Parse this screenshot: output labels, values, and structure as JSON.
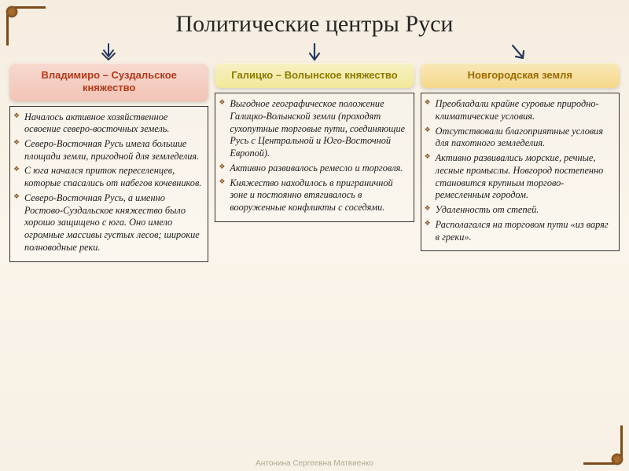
{
  "title": "Политические центры Руси",
  "colors": {
    "col1_bg": "linear-gradient(to bottom, #f7d9d0, #f2c4b6)",
    "col1_text": "#b03a1a",
    "col2_bg": "linear-gradient(to bottom, #f7f0c4, #f2e89a)",
    "col2_text": "#8a7a00",
    "col3_bg": "linear-gradient(to bottom, #f9e8b8, #f5d88a)",
    "col3_text": "#9a6a00",
    "arrow": "#2a3a5a"
  },
  "columns": [
    {
      "header": "Владимиро – Суздальское княжество",
      "items": [
        "Началось активное хозяйственное освоение северо-восточных земель.",
        "Северо-Восточная Русь имела большие площади земли, пригодной для земледелия.",
        "С юга начался приток переселенцев, которые спасались от набегов кочевников.",
        "Северо-Восточная Русь, а именно Ростово-Суздальское княжество было хорошо защищено с юга. Оно имело огромные массивы густых лесов; широкие полноводные реки."
      ]
    },
    {
      "header": "Галицко – Волынское княжество",
      "items": [
        "Выгодное географическое положение Галицко-Волынской земли (проходят сухопутные торговые пути, соединяющие Русь с Центральной и Юго-Восточной Европой).",
        "Активно развивалось ремесло и торговля.",
        "Княжество находилось в приграничной зоне и постоянно втягивалось в вооруженные конфликты с соседями."
      ]
    },
    {
      "header": "Новгородская земля",
      "items": [
        "Преобладали крайне суровые природно-климатические условия.",
        "Отсутствовали благоприятные условия для пахотного земледелия.",
        "Активно развивались морские, речные, лесные промыслы. Новгород постепенно становится крупным торгово-ремесленным городом.",
        "Удаленность от степей.",
        "Располагался на торговом пути «из варяг в греки»."
      ]
    }
  ],
  "footer": "Антонина Сергеевна Матвиенко"
}
